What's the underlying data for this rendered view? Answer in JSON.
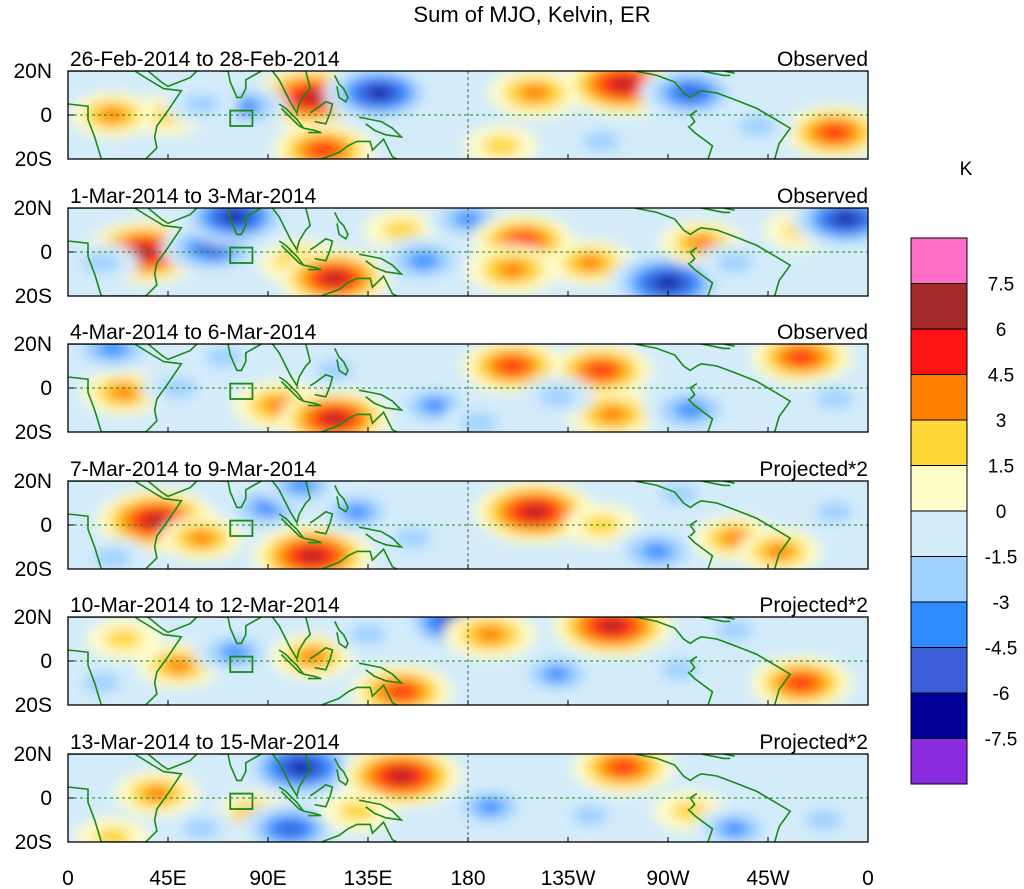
{
  "chart_data": {
    "type": "heatmap",
    "title": "Sum of MJO, Kelvin, ER",
    "x_tick_labels": [
      "0",
      "45E",
      "90E",
      "135E",
      "180",
      "135W",
      "90W",
      "45W",
      "0"
    ],
    "y_tick_labels": [
      "20N",
      "0",
      "20S"
    ],
    "x_range_deg_east": [
      0,
      360
    ],
    "y_range_deg": [
      -20,
      20
    ],
    "colorbar": {
      "unit": "K",
      "labels": [
        "7.5",
        "6",
        "4.5",
        "3",
        "1.5",
        "0",
        "-1.5",
        "-3",
        "-4.5",
        "-6",
        "-7.5"
      ],
      "colors": [
        "#ff6ec7",
        "#a52a2a",
        "#ff1414",
        "#ff7f00",
        "#ffd736",
        "#fffcca",
        "#d4ecfa",
        "#a0d2ff",
        "#2d8cff",
        "#3a5fd8",
        "#000099",
        "#8a2be2"
      ]
    },
    "panels": [
      {
        "dates": "26-Feb-2014 to 28-Feb-2014",
        "label": "Observed",
        "features": [
          {
            "lon": 110,
            "lat": 8,
            "v": 8
          },
          {
            "lon": 140,
            "lat": 10,
            "v": -7
          },
          {
            "lon": 210,
            "lat": 10,
            "v": 5
          },
          {
            "lon": 250,
            "lat": 14,
            "v": 8
          },
          {
            "lon": 280,
            "lat": 10,
            "v": -6
          },
          {
            "lon": 345,
            "lat": -8,
            "v": 6
          },
          {
            "lon": 45,
            "lat": 0,
            "v": 3
          },
          {
            "lon": 20,
            "lat": 0,
            "v": 4
          },
          {
            "lon": 80,
            "lat": 4,
            "v": -4
          },
          {
            "lon": 60,
            "lat": 5,
            "v": -3
          },
          {
            "lon": 125,
            "lat": -10,
            "v": -3
          },
          {
            "lon": 240,
            "lat": -12,
            "v": -3
          },
          {
            "lon": 195,
            "lat": -14,
            "v": 3
          },
          {
            "lon": 310,
            "lat": -5,
            "v": -3
          },
          {
            "lon": 115,
            "lat": -16,
            "v": 6
          }
        ]
      },
      {
        "dates": "1-Mar-2014 to 3-Mar-2014",
        "label": "Observed",
        "features": [
          {
            "lon": 35,
            "lat": 0,
            "v": 8
          },
          {
            "lon": 65,
            "lat": 2,
            "v": -6
          },
          {
            "lon": 105,
            "lat": -5,
            "v": 4
          },
          {
            "lon": 120,
            "lat": -12,
            "v": 7
          },
          {
            "lon": 150,
            "lat": 10,
            "v": 3
          },
          {
            "lon": 160,
            "lat": -4,
            "v": -5
          },
          {
            "lon": 180,
            "lat": 15,
            "v": -4
          },
          {
            "lon": 205,
            "lat": 5,
            "v": 6
          },
          {
            "lon": 235,
            "lat": -5,
            "v": 4
          },
          {
            "lon": 200,
            "lat": -8,
            "v": 5
          },
          {
            "lon": 270,
            "lat": -14,
            "v": -8
          },
          {
            "lon": 285,
            "lat": 4,
            "v": 4
          },
          {
            "lon": 330,
            "lat": 10,
            "v": 3
          },
          {
            "lon": 350,
            "lat": 15,
            "v": -7
          },
          {
            "lon": 15,
            "lat": -5,
            "v": -3
          },
          {
            "lon": 75,
            "lat": 16,
            "v": -7
          },
          {
            "lon": 300,
            "lat": -5,
            "v": -3
          }
        ]
      },
      {
        "dates": "4-Mar-2014 to 6-Mar-2014",
        "label": "Observed",
        "features": [
          {
            "lon": 25,
            "lat": -2,
            "v": 4
          },
          {
            "lon": 50,
            "lat": 0,
            "v": -3
          },
          {
            "lon": 95,
            "lat": -8,
            "v": 5
          },
          {
            "lon": 120,
            "lat": -14,
            "v": 7
          },
          {
            "lon": 120,
            "lat": 8,
            "v": -3
          },
          {
            "lon": 165,
            "lat": -8,
            "v": -4
          },
          {
            "lon": 200,
            "lat": 10,
            "v": 6
          },
          {
            "lon": 240,
            "lat": 8,
            "v": 6
          },
          {
            "lon": 245,
            "lat": -12,
            "v": 5
          },
          {
            "lon": 220,
            "lat": -4,
            "v": -3
          },
          {
            "lon": 280,
            "lat": -10,
            "v": -5
          },
          {
            "lon": 330,
            "lat": 14,
            "v": 6
          },
          {
            "lon": 20,
            "lat": 18,
            "v": -5
          },
          {
            "lon": 345,
            "lat": -5,
            "v": -3
          },
          {
            "lon": 70,
            "lat": 14,
            "v": -3
          },
          {
            "lon": 185,
            "lat": -16,
            "v": -3
          }
        ]
      },
      {
        "dates": "7-Mar-2014 to 9-Mar-2014",
        "label": "Projected*2",
        "features": [
          {
            "lon": 40,
            "lat": 2,
            "v": 8
          },
          {
            "lon": 60,
            "lat": -6,
            "v": 4
          },
          {
            "lon": 90,
            "lat": 8,
            "v": -5
          },
          {
            "lon": 110,
            "lat": -14,
            "v": 8
          },
          {
            "lon": 130,
            "lat": 6,
            "v": -4
          },
          {
            "lon": 155,
            "lat": -6,
            "v": -3
          },
          {
            "lon": 210,
            "lat": 6,
            "v": 8
          },
          {
            "lon": 240,
            "lat": 0,
            "v": 3
          },
          {
            "lon": 265,
            "lat": -12,
            "v": -5
          },
          {
            "lon": 300,
            "lat": -6,
            "v": 4
          },
          {
            "lon": 320,
            "lat": -12,
            "v": 4
          },
          {
            "lon": 20,
            "lat": -15,
            "v": -3
          },
          {
            "lon": 105,
            "lat": 18,
            "v": -4
          },
          {
            "lon": 345,
            "lat": 6,
            "v": -3
          },
          {
            "lon": 275,
            "lat": 14,
            "v": -3
          }
        ]
      },
      {
        "dates": "10-Mar-2014 to 12-Mar-2014",
        "label": "Projected*2",
        "features": [
          {
            "lon": 25,
            "lat": 10,
            "v": 3
          },
          {
            "lon": 50,
            "lat": -2,
            "v": 4
          },
          {
            "lon": 75,
            "lat": 4,
            "v": -4
          },
          {
            "lon": 110,
            "lat": 2,
            "v": 4
          },
          {
            "lon": 150,
            "lat": -14,
            "v": 6
          },
          {
            "lon": 175,
            "lat": 18,
            "v": -7
          },
          {
            "lon": 190,
            "lat": 12,
            "v": 5
          },
          {
            "lon": 220,
            "lat": -6,
            "v": -4
          },
          {
            "lon": 245,
            "lat": 16,
            "v": 8
          },
          {
            "lon": 275,
            "lat": -4,
            "v": -3
          },
          {
            "lon": 330,
            "lat": -10,
            "v": 6
          },
          {
            "lon": 300,
            "lat": 14,
            "v": -3
          },
          {
            "lon": 15,
            "lat": -10,
            "v": -3
          },
          {
            "lon": 135,
            "lat": 12,
            "v": -3
          }
        ]
      },
      {
        "dates": "13-Mar-2014 to 15-Mar-2014",
        "label": "Projected*2",
        "features": [
          {
            "lon": 40,
            "lat": 2,
            "v": 4
          },
          {
            "lon": 85,
            "lat": -8,
            "v": 4
          },
          {
            "lon": 105,
            "lat": 14,
            "v": -8
          },
          {
            "lon": 100,
            "lat": -14,
            "v": -6
          },
          {
            "lon": 150,
            "lat": 10,
            "v": 8
          },
          {
            "lon": 130,
            "lat": -6,
            "v": 3
          },
          {
            "lon": 190,
            "lat": -4,
            "v": -4
          },
          {
            "lon": 250,
            "lat": 14,
            "v": 6
          },
          {
            "lon": 235,
            "lat": -8,
            "v": -3
          },
          {
            "lon": 280,
            "lat": -6,
            "v": 3
          },
          {
            "lon": 300,
            "lat": -14,
            "v": -4
          },
          {
            "lon": 60,
            "lat": -14,
            "v": -3
          },
          {
            "lon": 20,
            "lat": -18,
            "v": 3
          },
          {
            "lon": 340,
            "lat": -10,
            "v": -3
          }
        ]
      }
    ],
    "region_marker": {
      "lon": [
        73,
        83
      ],
      "lat": [
        -5,
        2
      ]
    }
  },
  "icons": {
    "map-background": "land-outline"
  },
  "colors": {
    "coastline": "#1a8a1a",
    "frame": "#000000",
    "dash": "#1a8a1a"
  }
}
